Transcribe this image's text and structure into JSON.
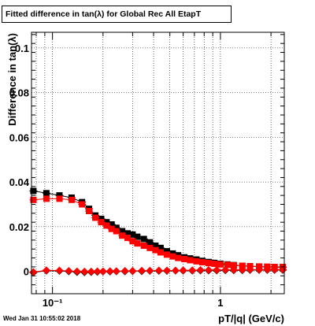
{
  "title": "Fitted difference in tan(λ) for Global Rec All EtapT",
  "timestamp": "Wed Jan 31 10:55:02 2018",
  "chart_data": {
    "type": "scatter",
    "title": "Fitted difference in tan(λ) for Global Rec All EtapT",
    "xlabel": "pT/|q| (GeV/c)",
    "ylabel": "Difference in tan(λ)",
    "xscale": "log",
    "xlim": [
      0.075,
      2.4
    ],
    "ylim": [
      -0.01,
      0.107
    ],
    "grid": true,
    "x_ticks": [
      {
        "value": 0.1,
        "label": "10⁻¹"
      },
      {
        "value": 1,
        "label": "1"
      }
    ],
    "y_ticks": [
      {
        "value": 0,
        "label": "0"
      },
      {
        "value": 0.02,
        "label": "0.02"
      },
      {
        "value": 0.04,
        "label": "0.04"
      },
      {
        "value": 0.06,
        "label": "0.06"
      },
      {
        "value": 0.08,
        "label": "0.08"
      },
      {
        "value": 0.1,
        "label": "0.1"
      }
    ],
    "series": [
      {
        "color": "#000000",
        "marker": "square",
        "x": [
          0.077,
          0.092,
          0.11,
          0.13,
          0.15,
          0.165,
          0.18,
          0.195,
          0.21,
          0.225,
          0.24,
          0.26,
          0.28,
          0.3,
          0.32,
          0.35,
          0.38,
          0.41,
          0.44,
          0.48,
          0.52,
          0.56,
          0.61,
          0.66,
          0.72,
          0.78,
          0.85,
          0.92,
          1.0,
          1.1,
          1.2,
          1.35,
          1.5,
          1.7,
          1.9,
          2.1,
          2.35
        ],
        "y": [
          0.036,
          0.035,
          0.034,
          0.033,
          0.031,
          0.028,
          0.025,
          0.0235,
          0.022,
          0.021,
          0.0195,
          0.018,
          0.017,
          0.0165,
          0.0155,
          0.0145,
          0.013,
          0.0115,
          0.0105,
          0.009,
          0.008,
          0.0072,
          0.0063,
          0.0058,
          0.0053,
          0.0047,
          0.0042,
          0.0038,
          0.0034,
          0.0031,
          0.0028,
          0.0025,
          0.0023,
          0.0021,
          0.002,
          0.0019,
          0.0018
        ]
      },
      {
        "color": "#ff0000",
        "marker": "square",
        "x": [
          0.077,
          0.092,
          0.11,
          0.13,
          0.15,
          0.165,
          0.18,
          0.195,
          0.21,
          0.225,
          0.24,
          0.26,
          0.28,
          0.3,
          0.32,
          0.35,
          0.38,
          0.41,
          0.44,
          0.48,
          0.52,
          0.56,
          0.61,
          0.66,
          0.72,
          0.78,
          0.85,
          0.92,
          1.0,
          1.1,
          1.2,
          1.35,
          1.5,
          1.7,
          1.9,
          2.1,
          2.35
        ],
        "y": [
          0.032,
          0.0325,
          0.0325,
          0.032,
          0.03,
          0.027,
          0.024,
          0.022,
          0.0205,
          0.019,
          0.018,
          0.016,
          0.015,
          0.0135,
          0.0125,
          0.0115,
          0.0105,
          0.0095,
          0.0085,
          0.0075,
          0.0067,
          0.006,
          0.0055,
          0.005,
          0.0045,
          0.0041,
          0.0037,
          0.0034,
          0.0031,
          0.0029,
          0.0027,
          0.0025,
          0.0023,
          0.0022,
          0.0021,
          0.002,
          0.002
        ]
      },
      {
        "color": "#000000",
        "marker": "diamond",
        "x": [
          0.077,
          0.092,
          0.11,
          0.125,
          0.14,
          0.155,
          0.17,
          0.185,
          0.2,
          0.22,
          0.24,
          0.27,
          0.3,
          0.34,
          0.38,
          0.43,
          0.48,
          0.54,
          0.6,
          0.68,
          0.76,
          0.85,
          0.95,
          1.07,
          1.2,
          1.35,
          1.5,
          1.7,
          1.9,
          2.1,
          2.35
        ],
        "y": [
          -0.0005,
          0.0003,
          0.0002,
          0.0,
          -0.0003,
          -0.0004,
          -0.0003,
          -0.0002,
          -0.0001,
          -0.0001,
          0.0,
          0.0,
          0.0001,
          0.0001,
          0.0002,
          0.0002,
          0.0002,
          0.0003,
          0.0003,
          0.0003,
          0.0004,
          0.0004,
          0.0004,
          0.0005,
          0.0005,
          0.0005,
          0.0006,
          0.0006,
          0.0006,
          0.0006,
          0.0006
        ]
      },
      {
        "color": "#ff0000",
        "marker": "diamond",
        "x": [
          0.077,
          0.092,
          0.11,
          0.125,
          0.14,
          0.155,
          0.17,
          0.185,
          0.2,
          0.22,
          0.24,
          0.27,
          0.3,
          0.34,
          0.38,
          0.43,
          0.48,
          0.54,
          0.6,
          0.68,
          0.76,
          0.85,
          0.95,
          1.07,
          1.2,
          1.35,
          1.5,
          1.7,
          1.9,
          2.1,
          2.35
        ],
        "y": [
          -0.0003,
          0.0005,
          0.0004,
          0.0002,
          0.0,
          -0.0001,
          -0.0001,
          0.0,
          0.0,
          0.0001,
          0.0001,
          0.0002,
          0.0002,
          0.0003,
          0.0003,
          0.0004,
          0.0004,
          0.0004,
          0.0005,
          0.0005,
          0.0006,
          0.0006,
          0.0006,
          0.0007,
          0.0007,
          0.0007,
          0.0008,
          0.0008,
          0.0008,
          0.0008,
          0.0008
        ]
      }
    ]
  }
}
